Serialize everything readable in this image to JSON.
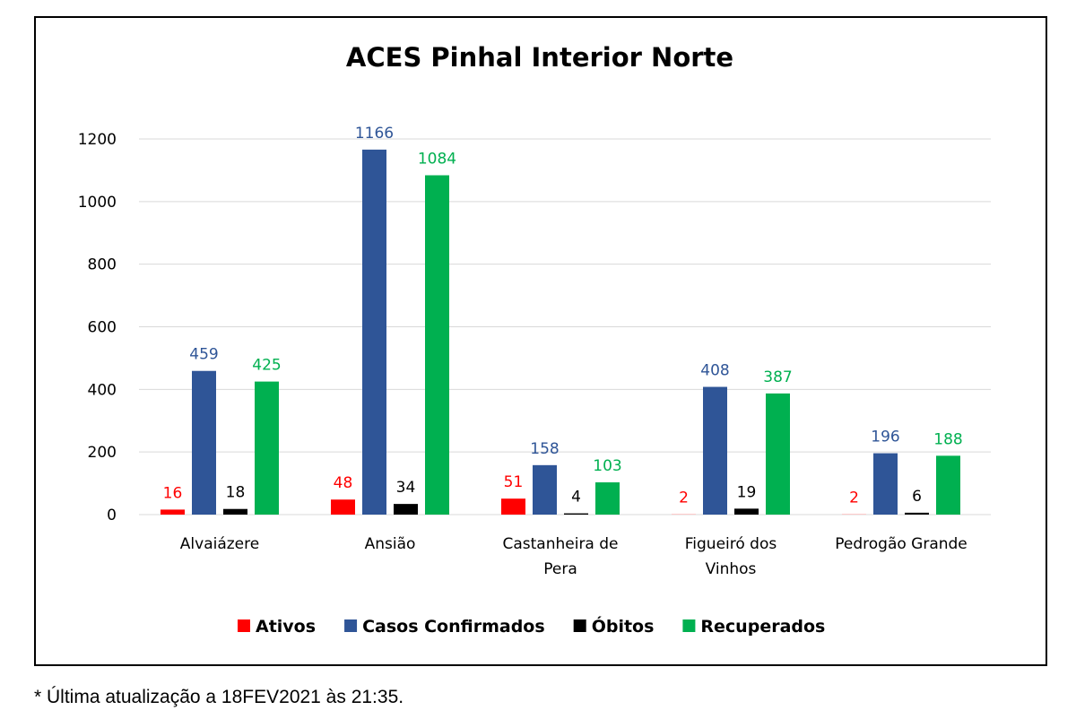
{
  "chart_data": {
    "type": "bar",
    "title": "ACES Pinhal Interior Norte",
    "categories": [
      [
        "Alvaiázere"
      ],
      [
        "Ansião"
      ],
      [
        "Castanheira de",
        "Pera"
      ],
      [
        "Figueiró dos",
        "Vinhos"
      ],
      [
        "Pedrogão Grande"
      ]
    ],
    "series": [
      {
        "name": "Ativos",
        "color": "#ff0000",
        "label_color": "#ff0000",
        "values": [
          16,
          48,
          51,
          2,
          2
        ]
      },
      {
        "name": "Casos Confirmados",
        "color": "#2f5597",
        "label_color": "#2f5597",
        "values": [
          459,
          1166,
          158,
          408,
          196
        ]
      },
      {
        "name": "Óbitos",
        "color": "#000000",
        "label_color": "#000000",
        "values": [
          18,
          34,
          4,
          19,
          6
        ]
      },
      {
        "name": "Recuperados",
        "color": "#00b050",
        "label_color": "#00b050",
        "values": [
          425,
          1084,
          103,
          387,
          188
        ]
      }
    ],
    "ylim": [
      0,
      1200
    ],
    "yticks": [
      0,
      200,
      400,
      600,
      800,
      1000,
      1200
    ],
    "grid": true,
    "legend": "bottom"
  },
  "footnote": "* Última atualização a 18FEV2021 às 21:35."
}
